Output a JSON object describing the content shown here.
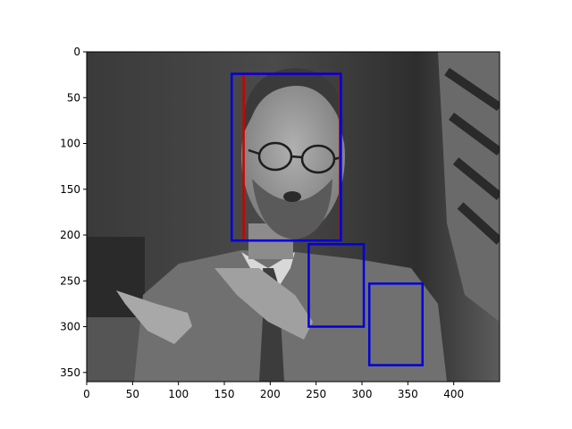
{
  "chart_data": {
    "type": "image",
    "xlim": [
      0,
      450
    ],
    "ylim": [
      360,
      0
    ],
    "x_ticks": [
      0,
      50,
      100,
      150,
      200,
      250,
      300,
      350,
      400
    ],
    "y_ticks": [
      0,
      50,
      100,
      150,
      200,
      250,
      300,
      350
    ],
    "x_tick_labels": [
      "0",
      "50",
      "100",
      "150",
      "200",
      "250",
      "300",
      "350",
      "400"
    ],
    "y_tick_labels": [
      "0",
      "50",
      "100",
      "150",
      "200",
      "250",
      "300",
      "350"
    ],
    "boxes": [
      {
        "x0": 171,
        "y0": 24,
        "x1": 276,
        "y1": 206,
        "color": "#d00000"
      },
      {
        "x0": 158,
        "y0": 24,
        "x1": 277,
        "y1": 206,
        "color": "#0000dd"
      },
      {
        "x0": 242,
        "y0": 210,
        "x1": 302,
        "y1": 300,
        "color": "#0000dd"
      },
      {
        "x0": 308,
        "y0": 253,
        "x1": 366,
        "y1": 342,
        "color": "#0000dd"
      }
    ],
    "photo_description_colors": {
      "background_dark": "#2f2f2f",
      "background_mid": "#5a5a5a",
      "suit": "#6e6e6e",
      "shirt": "#d8d8d8",
      "skin": "#9a9a9a",
      "hair": "#3a3a3a"
    }
  }
}
